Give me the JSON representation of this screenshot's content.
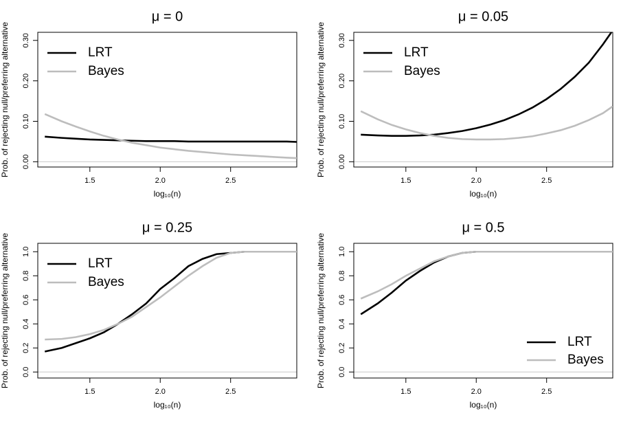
{
  "chart_data": [
    {
      "type": "line",
      "title": "μ = 0",
      "x_label": "log₁₀(n)",
      "y_label": "Prob. of rejecting null/preferring alternative",
      "x": [
        1.18,
        1.3,
        1.4,
        1.5,
        1.6,
        1.7,
        1.8,
        1.9,
        2.0,
        2.1,
        2.2,
        2.3,
        2.4,
        2.5,
        2.6,
        2.7,
        2.8,
        2.9,
        2.97
      ],
      "series": [
        {
          "name": "LRT",
          "color": "#000000",
          "values": [
            0.062,
            0.059,
            0.057,
            0.055,
            0.054,
            0.053,
            0.052,
            0.051,
            0.051,
            0.051,
            0.05,
            0.05,
            0.05,
            0.05,
            0.05,
            0.05,
            0.05,
            0.05,
            0.049
          ]
        },
        {
          "name": "Bayes",
          "color": "#bdbdbd",
          "values": [
            0.118,
            0.1,
            0.087,
            0.075,
            0.064,
            0.055,
            0.047,
            0.041,
            0.035,
            0.031,
            0.027,
            0.024,
            0.021,
            0.018,
            0.016,
            0.014,
            0.012,
            0.01,
            0.009
          ]
        }
      ],
      "xlim": [
        1.13,
        2.97
      ],
      "ylim": [
        -0.013,
        0.32
      ],
      "xticks": [
        1.5,
        {
          "value": 2,
          "label": "2.0"
        },
        2.5
      ],
      "yticks": [
        {
          "value": 0,
          "label": "0.00"
        },
        {
          "value": 0.1,
          "label": "0.10"
        },
        {
          "value": 0.2,
          "label": "0.20"
        },
        {
          "value": 0.3,
          "label": "0.30"
        }
      ],
      "hline": 0,
      "hline_color": "#d3d3d3",
      "legend": "topleft"
    },
    {
      "type": "line",
      "title": "μ = 0.05",
      "x_label": "log₁₀(n)",
      "y_label": "Prob. of rejecting null/preferring alternative",
      "x": [
        1.18,
        1.3,
        1.4,
        1.5,
        1.6,
        1.7,
        1.8,
        1.9,
        2.0,
        2.1,
        2.2,
        2.3,
        2.4,
        2.5,
        2.6,
        2.7,
        2.8,
        2.9,
        2.97
      ],
      "series": [
        {
          "name": "LRT",
          "color": "#000000",
          "values": [
            0.067,
            0.065,
            0.064,
            0.064,
            0.065,
            0.067,
            0.071,
            0.076,
            0.083,
            0.092,
            0.103,
            0.117,
            0.134,
            0.155,
            0.18,
            0.21,
            0.245,
            0.29,
            0.325
          ]
        },
        {
          "name": "Bayes",
          "color": "#bdbdbd",
          "values": [
            0.125,
            0.105,
            0.091,
            0.08,
            0.071,
            0.064,
            0.059,
            0.056,
            0.055,
            0.055,
            0.056,
            0.059,
            0.063,
            0.07,
            0.078,
            0.089,
            0.103,
            0.12,
            0.137
          ]
        }
      ],
      "xlim": [
        1.13,
        2.97
      ],
      "ylim": [
        -0.013,
        0.32
      ],
      "xticks": [
        1.5,
        {
          "value": 2,
          "label": "2.0"
        },
        2.5
      ],
      "yticks": [
        {
          "value": 0,
          "label": "0.00"
        },
        {
          "value": 0.1,
          "label": "0.10"
        },
        {
          "value": 0.2,
          "label": "0.20"
        },
        {
          "value": 0.3,
          "label": "0.30"
        }
      ],
      "hline": 0,
      "hline_color": "#d3d3d3",
      "legend": "topleft"
    },
    {
      "type": "line",
      "title": "μ = 0.25",
      "x_label": "log₁₀(n)",
      "y_label": "Prob. of rejecting null/preferring alternative",
      "x": [
        1.18,
        1.3,
        1.4,
        1.5,
        1.6,
        1.7,
        1.8,
        1.9,
        2.0,
        2.1,
        2.2,
        2.3,
        2.4,
        2.5,
        2.6,
        2.7,
        2.8,
        2.9,
        2.97
      ],
      "series": [
        {
          "name": "LRT",
          "color": "#000000",
          "values": [
            0.17,
            0.2,
            0.24,
            0.28,
            0.33,
            0.4,
            0.48,
            0.57,
            0.69,
            0.78,
            0.88,
            0.94,
            0.98,
            0.99,
            1,
            1,
            1,
            1,
            1
          ]
        },
        {
          "name": "Bayes",
          "color": "#bdbdbd",
          "values": [
            0.27,
            0.275,
            0.29,
            0.315,
            0.35,
            0.4,
            0.46,
            0.54,
            0.62,
            0.71,
            0.8,
            0.88,
            0.95,
            0.99,
            1,
            1,
            1,
            1,
            1
          ]
        }
      ],
      "xlim": [
        1.13,
        2.97
      ],
      "ylim": [
        -0.05,
        1.07
      ],
      "xticks": [
        1.5,
        {
          "value": 2,
          "label": "2.0"
        },
        2.5
      ],
      "yticks": [
        {
          "value": 0,
          "label": "0.0"
        },
        0.2,
        0.4,
        0.6,
        0.8,
        {
          "value": 1,
          "label": "1.0"
        }
      ],
      "hline": 0,
      "hline_color": "#d3d3d3",
      "legend": "topleft"
    },
    {
      "type": "line",
      "title": "μ = 0.5",
      "x_label": "log₁₀(n)",
      "y_label": "Prob. of rejecting null/preferring alternative",
      "x": [
        1.18,
        1.3,
        1.4,
        1.5,
        1.6,
        1.7,
        1.8,
        1.9,
        2.0,
        2.1,
        2.2,
        2.3,
        2.4,
        2.5,
        2.6,
        2.7,
        2.8,
        2.9,
        2.97
      ],
      "series": [
        {
          "name": "LRT",
          "color": "#000000",
          "values": [
            0.48,
            0.57,
            0.66,
            0.76,
            0.84,
            0.91,
            0.96,
            0.99,
            1,
            1,
            1,
            1,
            1,
            1,
            1,
            1,
            1,
            1,
            1
          ]
        },
        {
          "name": "Bayes",
          "color": "#bdbdbd",
          "values": [
            0.61,
            0.67,
            0.73,
            0.8,
            0.86,
            0.92,
            0.96,
            0.99,
            1,
            1,
            1,
            1,
            1,
            1,
            1,
            1,
            1,
            1,
            1
          ]
        }
      ],
      "xlim": [
        1.13,
        2.97
      ],
      "ylim": [
        -0.05,
        1.07
      ],
      "xticks": [
        1.5,
        {
          "value": 2,
          "label": "2.0"
        },
        2.5
      ],
      "yticks": [
        {
          "value": 0,
          "label": "0.0"
        },
        0.2,
        0.4,
        0.6,
        0.8,
        {
          "value": 1,
          "label": "1.0"
        }
      ],
      "hline": 0,
      "hline_color": "#d3d3d3",
      "legend": "bottomright"
    }
  ]
}
